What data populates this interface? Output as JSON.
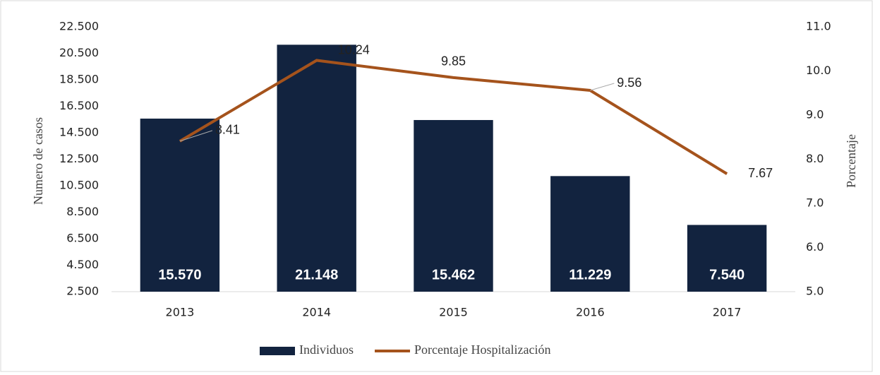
{
  "chart_data": {
    "type": "bar",
    "categories": [
      "2013",
      "2014",
      "2015",
      "2016",
      "2017"
    ],
    "series": [
      {
        "name": "Individuos",
        "type": "bar",
        "color": "#12233f",
        "values": [
          15570,
          21148,
          15462,
          11229,
          7540
        ],
        "value_labels": [
          "15.570",
          "21.148",
          "15.462",
          "11.229",
          "7.540"
        ]
      },
      {
        "name": "Porcentaje Hospitalización",
        "type": "line",
        "color": "#a5531c",
        "axis": "y2",
        "values": [
          8.41,
          10.24,
          9.85,
          9.56,
          7.67
        ]
      }
    ],
    "ylabel": "Numero de casos",
    "y2label": "Porcentaje",
    "ylim": [
      2500,
      22500
    ],
    "yticks": [
      {
        "value": 2500,
        "label": "2.500"
      },
      {
        "value": 4500,
        "label": "4.500"
      },
      {
        "value": 6500,
        "label": "6.500"
      },
      {
        "value": 8500,
        "label": "8.500"
      },
      {
        "value": 10500,
        "label": "10.500"
      },
      {
        "value": 12500,
        "label": "12.500"
      },
      {
        "value": 14500,
        "label": "14.500"
      },
      {
        "value": 16500,
        "label": "16.500"
      },
      {
        "value": 18500,
        "label": "18.500"
      },
      {
        "value": 20500,
        "label": "20.500"
      },
      {
        "value": 22500,
        "label": "22.500"
      }
    ],
    "y2lim": [
      5,
      11
    ],
    "y2ticks": [
      {
        "value": 5,
        "label": "5.0"
      },
      {
        "value": 6,
        "label": "6.0"
      },
      {
        "value": 7,
        "label": "7.0"
      },
      {
        "value": 8,
        "label": "8.0"
      },
      {
        "value": 9,
        "label": "9.0"
      },
      {
        "value": 10,
        "label": "10.0"
      },
      {
        "value": 11,
        "label": "11.0"
      }
    ],
    "grid": false,
    "legend": "bottom"
  }
}
